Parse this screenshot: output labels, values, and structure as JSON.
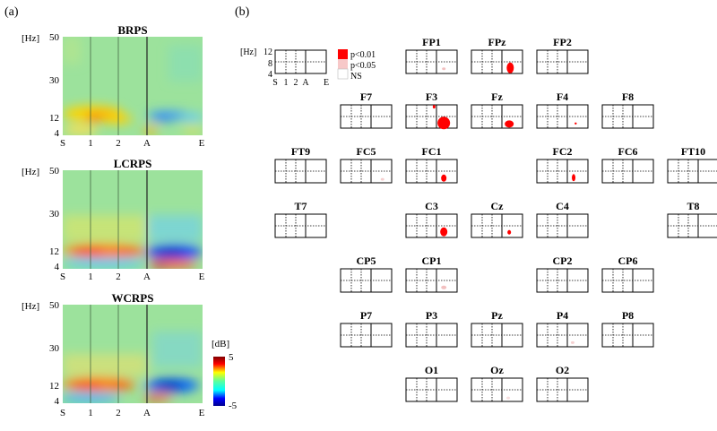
{
  "panel_a": {
    "label": "(a)",
    "hz_unit": "[Hz]",
    "y_ticks": [
      "50",
      "30",
      "12",
      "4"
    ],
    "x_ticks": [
      "S",
      "1",
      "2",
      "A",
      "E"
    ],
    "panels": [
      {
        "title": "BRPS"
      },
      {
        "title": "LCRPS"
      },
      {
        "title": "WCRPS"
      }
    ],
    "colorbar": {
      "unit": "[dB]",
      "max": "5",
      "min": "-5"
    }
  },
  "panel_b": {
    "label": "(b)",
    "key": {
      "hz_unit": "[Hz]",
      "y_ticks": [
        "12",
        "8",
        "4"
      ],
      "x_ticks": [
        "S",
        "1",
        "2",
        "A",
        "E"
      ]
    },
    "legend": [
      {
        "label": "p<0.01",
        "color": "#ff0000"
      },
      {
        "label": "p<0.05",
        "color": "#f7c8c8"
      },
      {
        "label": "NS",
        "color": "#ffffff"
      }
    ],
    "electrodes": [
      {
        "name": "FP1"
      },
      {
        "name": "FPz"
      },
      {
        "name": "FP2"
      },
      {
        "name": "F7"
      },
      {
        "name": "F3"
      },
      {
        "name": "Fz"
      },
      {
        "name": "F4"
      },
      {
        "name": "F8"
      },
      {
        "name": "FT9"
      },
      {
        "name": "FC5"
      },
      {
        "name": "FC1"
      },
      {
        "name": "FC2"
      },
      {
        "name": "FC6"
      },
      {
        "name": "FT10"
      },
      {
        "name": "T7"
      },
      {
        "name": "C3"
      },
      {
        "name": "Cz"
      },
      {
        "name": "C4"
      },
      {
        "name": "T8"
      },
      {
        "name": "CP5"
      },
      {
        "name": "CP1"
      },
      {
        "name": "CP2"
      },
      {
        "name": "CP6"
      },
      {
        "name": "P7"
      },
      {
        "name": "P3"
      },
      {
        "name": "Pz"
      },
      {
        "name": "P4"
      },
      {
        "name": "P8"
      },
      {
        "name": "O1"
      },
      {
        "name": "Oz"
      },
      {
        "name": "O2"
      }
    ]
  }
}
